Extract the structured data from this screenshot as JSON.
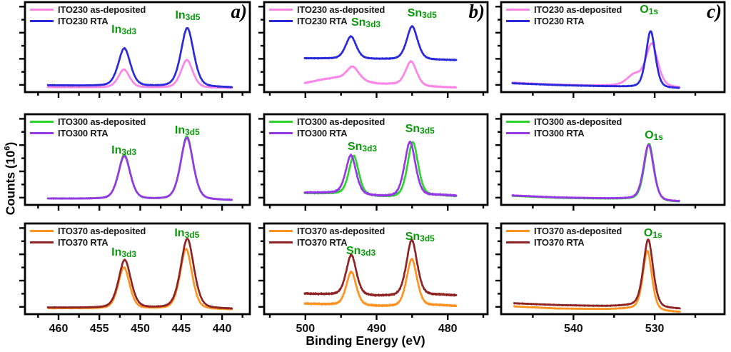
{
  "figure": {
    "x_axis_label": "Binding Energy (eV)",
    "y_axis_label": {
      "pre": "Counts (10",
      "sup": "6",
      "post": ")"
    }
  },
  "colors": {
    "pink": "#fa86e8",
    "blue": "#2a2ada",
    "green": "#2ed42e",
    "purple": "#9638e8",
    "orange": "#ff9221",
    "darkred": "#8e2424",
    "annotation_green": "#0a990a",
    "axis": "#000000"
  },
  "y_tick_fracs": {
    "major": [
      0.08,
      0.37,
      0.66,
      0.95
    ],
    "minor": [
      0.225,
      0.515,
      0.805
    ]
  },
  "chart_data": [
    {
      "id": "a-ITO230",
      "type": "line",
      "row": 0,
      "col": 0,
      "panel_letter": "a)",
      "element_region": "In 3d",
      "x_unit": "eV",
      "x_range": [
        464.1,
        436.6
      ],
      "x_major_ticks": [
        460,
        455,
        450,
        445,
        440
      ],
      "x_minor_ticks": [
        462.5,
        457.5,
        452.5,
        447.5,
        442.5,
        437.5
      ],
      "x_tick_labels": false,
      "annotations": [
        {
          "main": "In",
          "sub": "3d3",
          "x": 452.0,
          "y_frac": 0.62
        },
        {
          "main": "In",
          "sub": "3d5",
          "x": 444.2,
          "y_frac": 0.78
        }
      ],
      "series": [
        {
          "name": "ITO230 as-deposited",
          "color": "#fa86e8",
          "x_span": [
            461.3,
            438.8
          ],
          "base": [
            [
              461.3,
              0.055
            ],
            [
              438.8,
              0.045
            ]
          ],
          "peaks": [
            [
              452.0,
              0.2,
              0.72
            ],
            [
              444.3,
              0.31,
              0.76
            ]
          ],
          "noise": 0.004
        },
        {
          "name": "ITO230 RTA",
          "color": "#2a2ada",
          "x_span": [
            461.3,
            438.8
          ],
          "base": [
            [
              461.3,
              0.075
            ],
            [
              438.8,
              0.05
            ]
          ],
          "peaks": [
            [
              451.95,
              0.42,
              0.78
            ],
            [
              444.25,
              0.655,
              0.82
            ]
          ],
          "noise": 0.004
        }
      ]
    },
    {
      "id": "b-ITO230",
      "type": "line",
      "row": 0,
      "col": 1,
      "panel_letter": "b)",
      "element_region": "Sn 3d",
      "x_unit": "eV",
      "x_range": [
        505.8,
        474.4
      ],
      "x_major_ticks": [
        500,
        490,
        480
      ],
      "x_minor_ticks": [
        505,
        495,
        485,
        475
      ],
      "x_tick_labels": false,
      "annotations": [
        {
          "main": "Sn",
          "sub": "3d3",
          "x": 491.5,
          "y_frac": 0.7
        },
        {
          "main": "Sn",
          "sub": "3d5",
          "x": 483.6,
          "y_frac": 0.8
        }
      ],
      "series": [
        {
          "name": "ITO230 as-deposited",
          "color": "#fa86e8",
          "x_span": [
            500.1,
            478.8
          ],
          "base": [
            [
              500.1,
              0.1
            ],
            [
              497.5,
              0.14
            ],
            [
              495.8,
              0.155
            ],
            [
              492.2,
              0.115
            ],
            [
              489.8,
              0.09
            ],
            [
              487.6,
              0.085
            ],
            [
              483.2,
              0.06
            ],
            [
              478.8,
              0.05
            ]
          ],
          "peaks": [
            [
              493.35,
              0.155,
              0.92
            ],
            [
              485.15,
              0.27,
              0.82
            ]
          ],
          "noise": 0.006
        },
        {
          "name": "ITO230 RTA",
          "color": "#2a2ada",
          "x_span": [
            500.1,
            478.8
          ],
          "base": [
            [
              500.1,
              0.375
            ],
            [
              490,
              0.365
            ],
            [
              478.8,
              0.355
            ]
          ],
          "peaks": [
            [
              493.6,
              0.25,
              0.78
            ],
            [
              485.0,
              0.37,
              0.8
            ]
          ],
          "noise": 0.005
        }
      ]
    },
    {
      "id": "c-ITO230",
      "type": "line",
      "row": 0,
      "col": 2,
      "panel_letter": "c)",
      "element_region": "O 1s",
      "x_unit": "eV",
      "x_range": [
        548.9,
        521.4
      ],
      "x_major_ticks": [
        540,
        530
      ],
      "x_minor_ticks": [
        545,
        535,
        525
      ],
      "x_tick_labels": false,
      "annotations": [
        {
          "main": "O",
          "sub": "1s",
          "x": 530.7,
          "y_frac": 0.84
        }
      ],
      "series": [
        {
          "name": "ITO230 as-deposited",
          "color": "#fa86e8",
          "x_span": [
            547.5,
            527.0
          ],
          "base": [
            [
              547.5,
              0.105
            ],
            [
              543,
              0.085
            ],
            [
              538,
              0.072
            ],
            [
              534,
              0.07
            ],
            [
              528,
              0.05
            ],
            [
              527,
              0.048
            ]
          ],
          "peaks": [
            [
              532.5,
              0.12,
              0.95
            ],
            [
              530.35,
              0.47,
              0.78
            ]
          ],
          "noise": 0.004
        },
        {
          "name": "ITO230 RTA",
          "color": "#2a2ada",
          "x_span": [
            547.5,
            527.0
          ],
          "base": [
            [
              547.5,
              0.098
            ],
            [
              541,
              0.075
            ],
            [
              535,
              0.062
            ],
            [
              532.8,
              0.055
            ],
            [
              528.3,
              0.042
            ],
            [
              527,
              0.04
            ]
          ],
          "peaks": [
            [
              530.5,
              0.63,
              0.6
            ]
          ],
          "noise": 0.004
        }
      ]
    },
    {
      "id": "a-ITO300",
      "type": "line",
      "row": 1,
      "col": 0,
      "panel_letter": "",
      "element_region": "In 3d",
      "x_unit": "eV",
      "x_range": [
        464.1,
        436.6
      ],
      "x_major_ticks": [
        460,
        455,
        450,
        445,
        440
      ],
      "x_minor_ticks": [
        462.5,
        457.5,
        452.5,
        447.5,
        442.5,
        437.5
      ],
      "x_tick_labels": false,
      "annotations": [
        {
          "main": "In",
          "sub": "3d3",
          "x": 452.0,
          "y_frac": 0.53
        },
        {
          "main": "In",
          "sub": "3d5",
          "x": 444.25,
          "y_frac": 0.75
        }
      ],
      "series": [
        {
          "name": "ITO300 as-deposited",
          "color": "#2ed42e",
          "x_span": [
            461.3,
            438.8
          ],
          "base": [
            [
              461.3,
              0.07
            ],
            [
              438.8,
              0.05
            ]
          ],
          "peaks": [
            [
              451.95,
              0.49,
              0.76
            ],
            [
              444.3,
              0.7,
              0.8
            ]
          ],
          "noise": 0.004
        },
        {
          "name": "ITO300 RTA",
          "color": "#9638e8",
          "x_span": [
            461.3,
            438.8
          ],
          "base": [
            [
              461.3,
              0.07
            ],
            [
              438.8,
              0.05
            ]
          ],
          "peaks": [
            [
              451.95,
              0.475,
              0.77
            ],
            [
              444.3,
              0.685,
              0.81
            ]
          ],
          "noise": 0.004
        }
      ]
    },
    {
      "id": "b-ITO300",
      "type": "line",
      "row": 1,
      "col": 1,
      "panel_letter": "",
      "element_region": "Sn 3d",
      "x_unit": "eV",
      "x_range": [
        505.8,
        474.4
      ],
      "x_major_ticks": [
        500,
        490,
        480
      ],
      "x_minor_ticks": [
        505,
        495,
        485,
        475
      ],
      "x_tick_labels": false,
      "annotations": [
        {
          "main": "Sn",
          "sub": "3d3",
          "x": 492.0,
          "y_frac": 0.57
        },
        {
          "main": "Sn",
          "sub": "3d5",
          "x": 483.9,
          "y_frac": 0.76
        }
      ],
      "series": [
        {
          "name": "ITO300 as-deposited",
          "color": "#2ed42e",
          "x_span": [
            500.1,
            478.8
          ],
          "base": [
            [
              500.1,
              0.13
            ],
            [
              495.5,
              0.123
            ],
            [
              489.8,
              0.09
            ],
            [
              487.5,
              0.085
            ],
            [
              481,
              0.103
            ],
            [
              478.8,
              0.096
            ]
          ],
          "peaks": [
            [
              493.2,
              0.43,
              0.73
            ],
            [
              484.9,
              0.6,
              0.78
            ]
          ],
          "noise": 0.008
        },
        {
          "name": "ITO300 RTA",
          "color": "#9638e8",
          "x_span": [
            500.1,
            478.8
          ],
          "base": [
            [
              500.1,
              0.135
            ],
            [
              495.5,
              0.128
            ],
            [
              489.8,
              0.093
            ],
            [
              487.5,
              0.088
            ],
            [
              481,
              0.106
            ],
            [
              478.8,
              0.1
            ]
          ],
          "peaks": [
            [
              493.6,
              0.43,
              0.76
            ],
            [
              485.3,
              0.6,
              0.8
            ]
          ],
          "noise": 0.008
        }
      ]
    },
    {
      "id": "c-ITO300",
      "type": "line",
      "row": 1,
      "col": 2,
      "panel_letter": "",
      "element_region": "O 1s",
      "x_unit": "eV",
      "x_range": [
        548.9,
        521.4
      ],
      "x_major_ticks": [
        540,
        530
      ],
      "x_minor_ticks": [
        545,
        535,
        525
      ],
      "x_tick_labels": false,
      "annotations": [
        {
          "main": "O",
          "sub": "1s",
          "x": 530.1,
          "y_frac": 0.69
        }
      ],
      "series": [
        {
          "name": "ITO300 as-deposited",
          "color": "#2ed42e",
          "x_span": [
            547.5,
            527.0
          ],
          "base": [
            [
              547.5,
              0.1
            ],
            [
              542,
              0.078
            ],
            [
              536,
              0.068
            ],
            [
              532.5,
              0.062
            ],
            [
              528.5,
              0.035
            ],
            [
              527,
              0.032
            ]
          ],
          "peaks": [
            [
              530.7,
              0.625,
              0.63
            ]
          ],
          "noise": 0.004
        },
        {
          "name": "ITO300 RTA",
          "color": "#9638e8",
          "x_span": [
            547.5,
            527.0
          ],
          "base": [
            [
              547.5,
              0.104
            ],
            [
              542,
              0.082
            ],
            [
              536,
              0.071
            ],
            [
              532.5,
              0.066
            ],
            [
              528.5,
              0.039
            ],
            [
              527,
              0.036
            ]
          ],
          "peaks": [
            [
              530.75,
              0.61,
              0.65
            ]
          ],
          "noise": 0.004
        }
      ]
    },
    {
      "id": "a-ITO370",
      "type": "line",
      "row": 2,
      "col": 0,
      "panel_letter": "",
      "element_region": "In 3d",
      "x_unit": "eV",
      "x_range": [
        464.1,
        436.6
      ],
      "x_major_ticks": [
        460,
        455,
        450,
        445,
        440
      ],
      "x_minor_ticks": [
        462.5,
        457.5,
        452.5,
        447.5,
        442.5,
        437.5
      ],
      "x_tick_labels": true,
      "annotations": [
        {
          "main": "In",
          "sub": "3d3",
          "x": 452.0,
          "y_frac": 0.61
        },
        {
          "main": "In",
          "sub": "3d5",
          "x": 444.3,
          "y_frac": 0.82
        }
      ],
      "series": [
        {
          "name": "ITO370 as-deposited",
          "color": "#ff9221",
          "x_span": [
            461.3,
            438.8
          ],
          "base": [
            [
              461.3,
              0.065
            ],
            [
              438.8,
              0.05
            ]
          ],
          "peaks": [
            [
              452.0,
              0.455,
              0.73
            ],
            [
              444.4,
              0.665,
              0.77
            ]
          ],
          "noise": 0.004
        },
        {
          "name": "ITO370 RTA",
          "color": "#8e2424",
          "x_span": [
            461.3,
            438.8
          ],
          "base": [
            [
              461.3,
              0.072
            ],
            [
              438.8,
              0.056
            ]
          ],
          "peaks": [
            [
              451.9,
              0.53,
              0.79
            ],
            [
              444.25,
              0.77,
              0.85
            ]
          ],
          "noise": 0.004
        }
      ]
    },
    {
      "id": "b-ITO370",
      "type": "line",
      "row": 2,
      "col": 1,
      "panel_letter": "",
      "element_region": "Sn 3d",
      "x_unit": "eV",
      "x_range": [
        505.8,
        474.4
      ],
      "x_major_ticks": [
        500,
        490,
        480
      ],
      "x_minor_ticks": [
        505,
        495,
        485,
        475
      ],
      "x_tick_labels": true,
      "annotations": [
        {
          "main": "Sn",
          "sub": "3d3",
          "x": 492.2,
          "y_frac": 0.62
        },
        {
          "main": "Sn",
          "sub": "3d5",
          "x": 483.9,
          "y_frac": 0.78
        }
      ],
      "series": [
        {
          "name": "ITO370 as-deposited",
          "color": "#ff9221",
          "x_span": [
            500.1,
            478.8
          ],
          "base": [
            [
              500.1,
              0.115
            ],
            [
              495,
              0.1
            ],
            [
              490,
              0.085
            ],
            [
              487,
              0.082
            ],
            [
              481,
              0.095
            ],
            [
              478.8,
              0.088
            ]
          ],
          "peaks": [
            [
              493.55,
              0.37,
              0.73
            ],
            [
              485.05,
              0.52,
              0.77
            ]
          ],
          "noise": 0.009
        },
        {
          "name": "ITO370 RTA",
          "color": "#8e2424",
          "x_span": [
            500.1,
            478.8
          ],
          "base": [
            [
              500.1,
              0.225
            ],
            [
              495,
              0.21
            ],
            [
              490,
              0.196
            ],
            [
              487,
              0.196
            ],
            [
              481,
              0.21
            ],
            [
              478.8,
              0.205
            ]
          ],
          "peaks": [
            [
              493.55,
              0.445,
              0.75
            ],
            [
              485.05,
              0.615,
              0.79
            ]
          ],
          "noise": 0.009
        }
      ]
    },
    {
      "id": "c-ITO370",
      "type": "line",
      "row": 2,
      "col": 2,
      "panel_letter": "",
      "element_region": "O 1s",
      "x_unit": "eV",
      "x_range": [
        548.9,
        521.4
      ],
      "x_major_ticks": [
        540,
        530
      ],
      "x_minor_ticks": [
        545,
        535,
        525
      ],
      "x_tick_labels": true,
      "annotations": [
        {
          "main": "O",
          "sub": "1s",
          "x": 530.2,
          "y_frac": 0.82
        }
      ],
      "series": [
        {
          "name": "ITO370 as-deposited",
          "color": "#ff9221",
          "x_span": [
            547.3,
            526.9
          ],
          "base": [
            [
              547.3,
              0.085
            ],
            [
              542,
              0.062
            ],
            [
              536,
              0.055
            ],
            [
              532.5,
              0.06
            ],
            [
              528.6,
              0.028
            ],
            [
              526.9,
              0.022
            ]
          ],
          "peaks": [
            [
              530.9,
              0.65,
              0.58
            ]
          ],
          "noise": 0.004
        },
        {
          "name": "ITO370 RTA",
          "color": "#8e2424",
          "x_span": [
            547.3,
            526.9
          ],
          "base": [
            [
              547.3,
              0.12
            ],
            [
              542,
              0.1
            ],
            [
              536,
              0.088
            ],
            [
              532.5,
              0.092
            ],
            [
              528.6,
              0.062
            ],
            [
              526.9,
              0.057
            ]
          ],
          "peaks": [
            [
              530.8,
              0.745,
              0.63
            ]
          ],
          "noise": 0.004
        }
      ]
    }
  ]
}
